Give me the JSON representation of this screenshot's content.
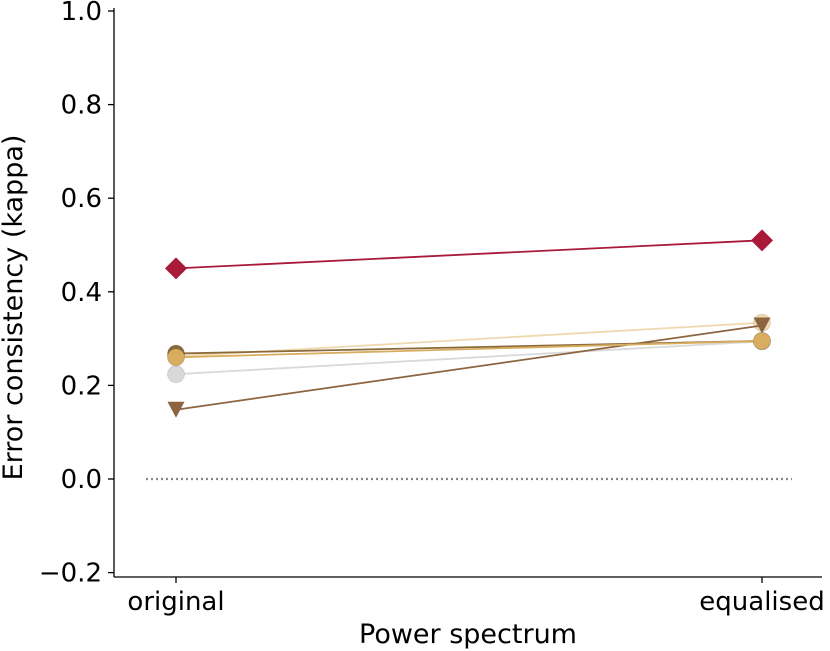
{
  "chart_data": {
    "type": "line",
    "title": "",
    "xlabel": "Power spectrum",
    "ylabel": "Error consistency (kappa)",
    "categories": [
      "original",
      "equalised"
    ],
    "ylim": [
      -0.2,
      1.0
    ],
    "yticks": [
      -0.2,
      0.0,
      0.2,
      0.4,
      0.6,
      0.8,
      1.0
    ],
    "ytick_labels": [
      "−0.2",
      "0.0",
      "0.2",
      "0.4",
      "0.6",
      "0.8",
      "1.0"
    ],
    "grid": false,
    "legend": "none",
    "reference_line": {
      "y": 0.0,
      "style": "dotted",
      "color": "#888888"
    },
    "series": [
      {
        "values": [
          0.224,
          0.294
        ],
        "color": "#d9d9d9",
        "marker": "circle"
      },
      {
        "values": [
          0.262,
          0.334
        ],
        "color": "#f0d9b0",
        "marker": "circle"
      },
      {
        "values": [
          0.148,
          0.328
        ],
        "color": "#8c6440",
        "marker": "triangle-down"
      },
      {
        "values": [
          0.268,
          0.295
        ],
        "color": "#8a6a3a",
        "marker": "circle"
      },
      {
        "values": [
          0.26,
          0.295
        ],
        "color": "#d9ad60",
        "marker": "circle"
      },
      {
        "values": [
          0.45,
          0.51
        ],
        "color": "#a8193a",
        "marker": "diamond"
      }
    ]
  }
}
